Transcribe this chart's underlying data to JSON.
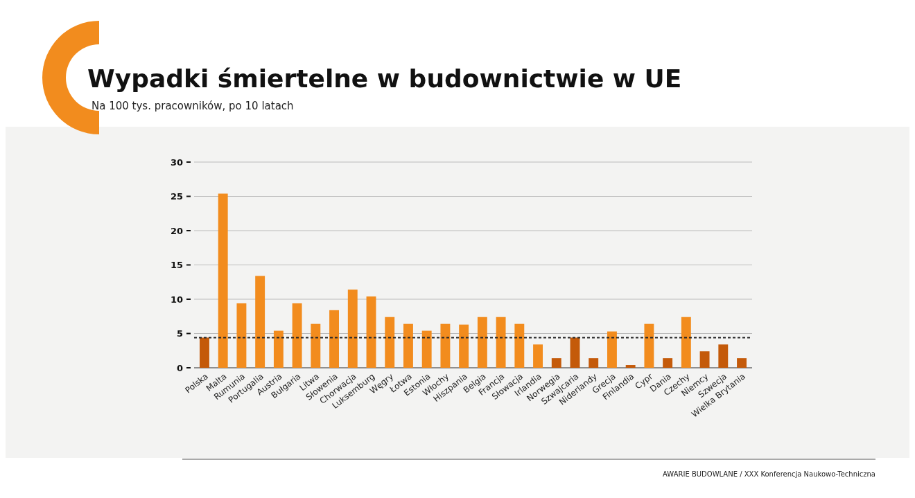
{
  "chart_data": {
    "type": "bar",
    "title": "Wypadki śmiertelne w budownictwie w UE",
    "subtitle": "Na 100 tys. pracowników, po 10 latach",
    "categories": [
      "Polska",
      "Malta",
      "Rumunia",
      "Portugalia",
      "Austria",
      "Bułgaria",
      "Litwa",
      "Słowenia",
      "Chorwacja",
      "Luksemburg",
      "Węgry",
      "Łotwa",
      "Estonia",
      "Włochy",
      "Hiszpania",
      "Belgia",
      "Francja",
      "Słowacja",
      "Irlandia",
      "Norwegia",
      "Szwajcaria",
      "Niderlandy",
      "Grecja",
      "Finlandia",
      "Cypr",
      "Dania",
      "Czechy",
      "Niemcy",
      "Szwecja",
      "Wielka Brytania"
    ],
    "values": [
      4.4,
      25.4,
      9.4,
      13.4,
      5.4,
      9.4,
      6.4,
      8.4,
      11.4,
      10.4,
      7.4,
      6.4,
      5.4,
      6.4,
      6.3,
      7.4,
      7.4,
      6.4,
      3.4,
      1.4,
      4.4,
      1.4,
      5.3,
      0.4,
      6.4,
      1.4,
      7.4,
      2.4,
      3.4,
      1.4
    ],
    "colors": [
      "#c45a0a",
      "#f28c1e",
      "#f28c1e",
      "#f28c1e",
      "#f28c1e",
      "#f28c1e",
      "#f28c1e",
      "#f28c1e",
      "#f28c1e",
      "#f28c1e",
      "#f28c1e",
      "#f28c1e",
      "#f28c1e",
      "#f28c1e",
      "#f28c1e",
      "#f28c1e",
      "#f28c1e",
      "#f28c1e",
      "#f28c1e",
      "#c45a0a",
      "#c45a0a",
      "#c45a0a",
      "#f28c1e",
      "#c45a0a",
      "#f28c1e",
      "#c45a0a",
      "#f28c1e",
      "#c45a0a",
      "#c45a0a",
      "#c45a0a"
    ],
    "ylim": [
      0,
      30
    ],
    "yticks": [
      0,
      5,
      10,
      15,
      20,
      25,
      30
    ],
    "grid": "y",
    "ref_lines": [
      {
        "axis": "y",
        "value": 4.4,
        "color": "#222222",
        "line_style": "dashed"
      }
    ],
    "annotations": [
      "AWARIE BUDOWLANE / XXX Konferencja Naukowo-Techniczna"
    ]
  }
}
